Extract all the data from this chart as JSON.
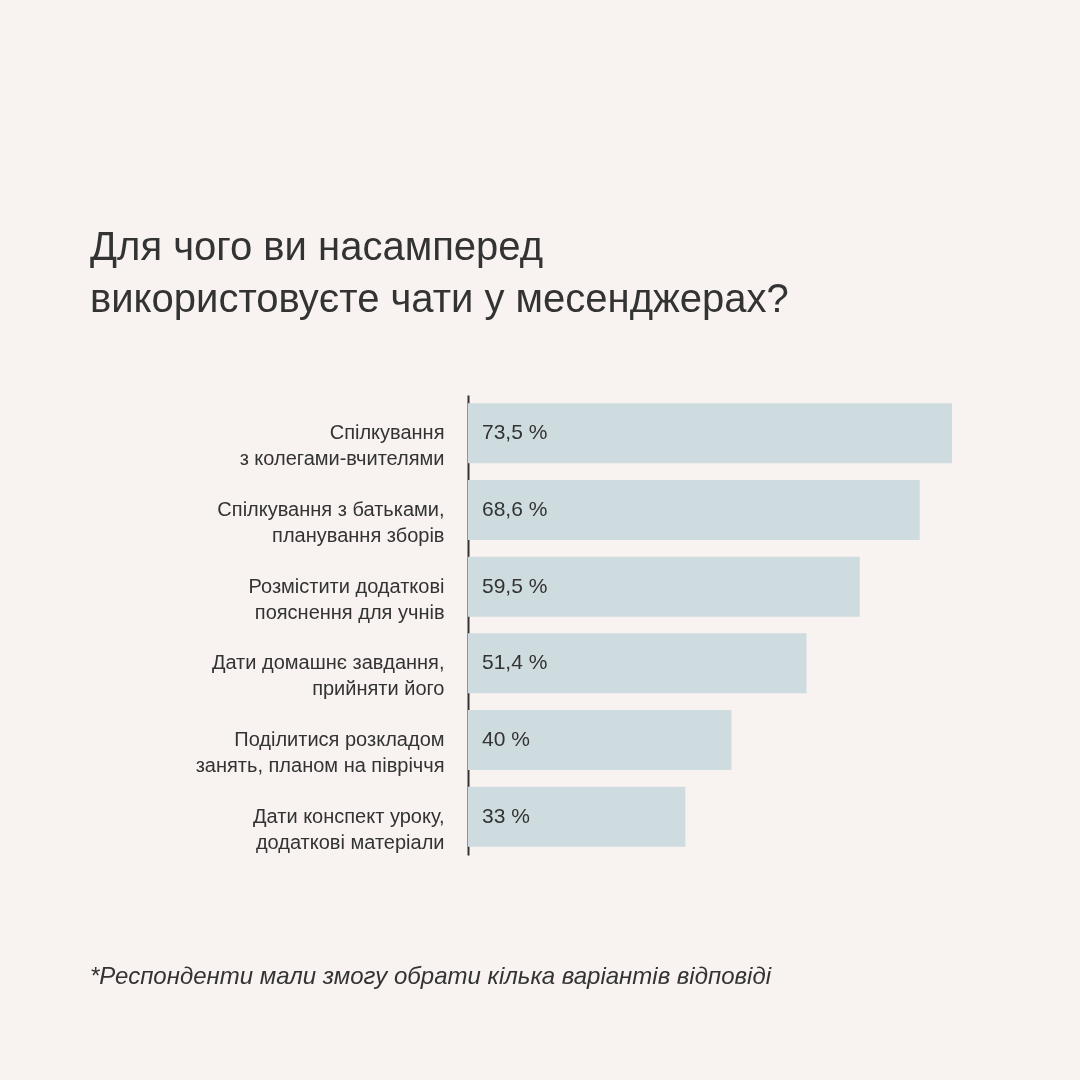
{
  "chart_data": {
    "type": "bar",
    "orientation": "horizontal",
    "title": "Для чого ви насамперед\nвикористовуєте чати у месенджерах?",
    "categories": [
      "Спілкування\nз колегами-вчителями",
      "Спілкування з батьками,\nпланування зборів",
      "Розмістити додаткові\nпояснення для учнів",
      "Дати домашнє завдання,\nприйняти його",
      "Поділитися розкладом\nзанять, планом на півріччя",
      "Дати конспект уроку,\nдодаткові матеріали"
    ],
    "values": [
      73.5,
      68.6,
      59.5,
      51.4,
      40,
      33
    ],
    "value_labels": [
      "73,5 %",
      "68,6 %",
      "59,5 %",
      "51,4 %",
      "40 %",
      "33 %"
    ],
    "color": "#cfdcdf",
    "tick_labels": "y",
    "annotations": [
      "*Респонденти мали змогу обрати кілька варіантів відповіді"
    ]
  }
}
